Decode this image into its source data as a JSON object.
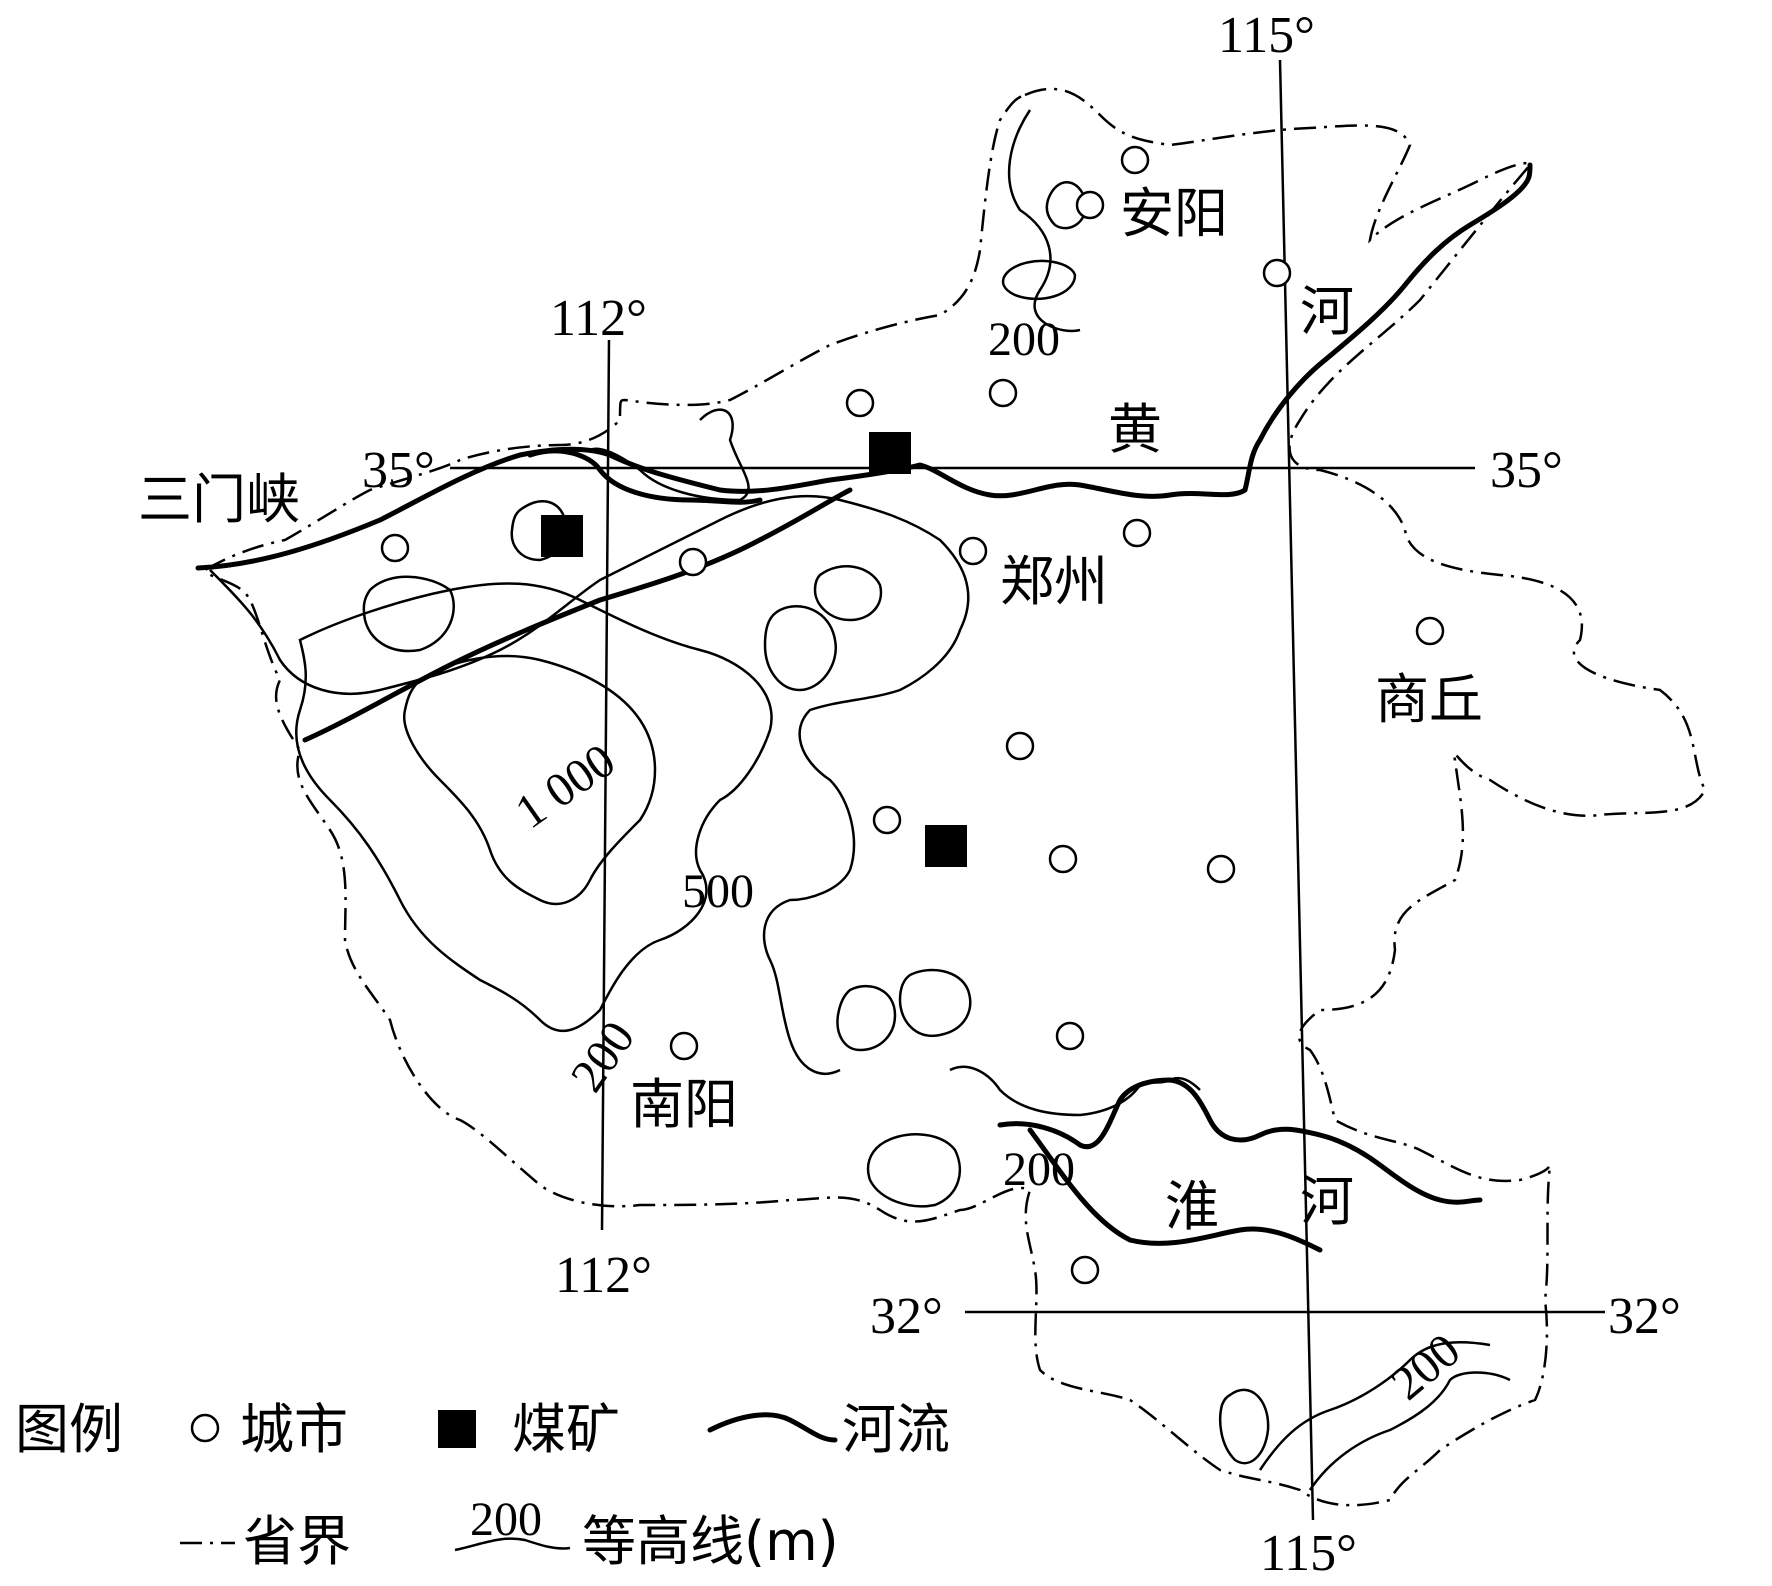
{
  "grid_labels": {
    "lon_115_top": "115°",
    "lon_115_bottom": "115°",
    "lon_112_top": "112°",
    "lon_112_bottom": "112°",
    "lat_35_left": "35°",
    "lat_35_right": "35°",
    "lat_32_left": "32°",
    "lat_32_right": "32°"
  },
  "cities": {
    "sanmenxia": "三门峡",
    "anyang": "安阳",
    "zhengzhou": "郑州",
    "shangqiu": "商丘",
    "nanyang": "南阳"
  },
  "rivers": {
    "huang_1": "黄",
    "huang_2": "河",
    "huai_1": "淮",
    "huai_2": "河"
  },
  "contour_labels": {
    "c200_north": "200",
    "c1000": "1 000",
    "c500": "500",
    "c200_west": "200",
    "c200_south": "200",
    "c200_southeast": "200"
  },
  "legend": {
    "title": "图例",
    "city": "城市",
    "mine": "煤矿",
    "river": "河流",
    "border": "省界",
    "contour_value": "200",
    "contour": "等高线(m)"
  }
}
